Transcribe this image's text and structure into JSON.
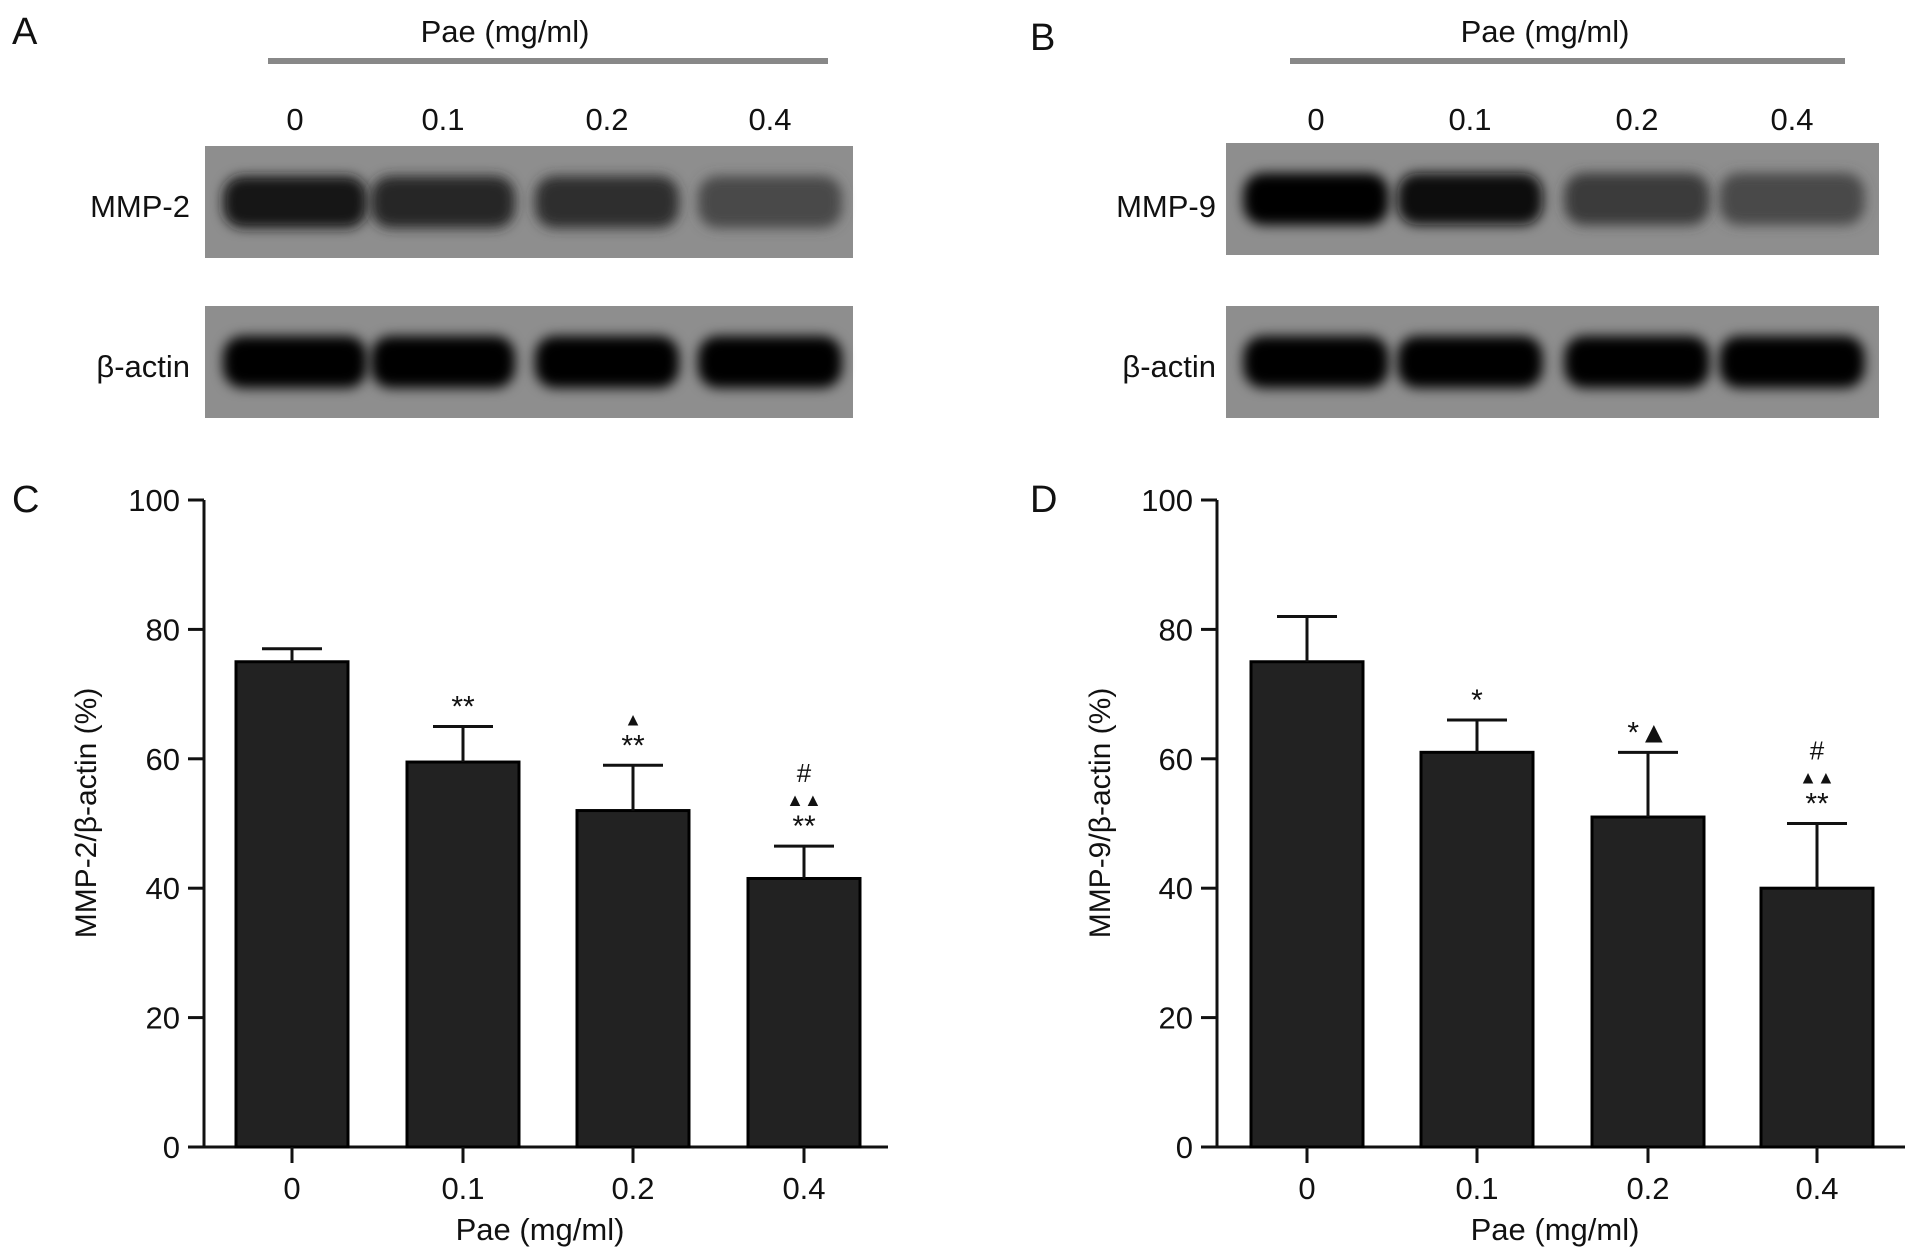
{
  "panels": {
    "A": {
      "letter": "A",
      "header": "Pae (mg/ml)",
      "lanes": [
        "0",
        "0.1",
        "0.2",
        "0.4"
      ],
      "rows": [
        {
          "label": "MMP-2",
          "intensity": [
            0.85,
            0.75,
            0.7,
            0.5
          ]
        },
        {
          "label": "β-actin",
          "intensity": [
            1.0,
            1.0,
            1.0,
            1.0
          ]
        }
      ]
    },
    "B": {
      "letter": "B",
      "header": "Pae (mg/ml)",
      "lanes": [
        "0",
        "0.1",
        "0.2",
        "0.4"
      ],
      "rows": [
        {
          "label": "MMP-9",
          "intensity": [
            1.0,
            0.95,
            0.6,
            0.5
          ]
        },
        {
          "label": "β-actin",
          "intensity": [
            1.0,
            1.0,
            1.0,
            1.0
          ]
        }
      ]
    }
  },
  "chart_data": [
    {
      "letter": "C",
      "type": "bar",
      "categories": [
        "0",
        "0.1",
        "0.2",
        "0.4"
      ],
      "values": [
        75,
        59.5,
        52,
        41.5
      ],
      "errors": [
        2,
        5.5,
        7,
        5
      ],
      "annotations": [
        [],
        [
          "**"
        ],
        [
          "▲",
          "**"
        ],
        [
          "#",
          "▲▲",
          "**"
        ]
      ],
      "xlabel": "Pae (mg/ml)",
      "ylabel": "MMP-2/β-actin (%)",
      "ylim": [
        0,
        100
      ],
      "yticks": [
        "0",
        "20",
        "40",
        "60",
        "80",
        "100"
      ]
    },
    {
      "letter": "D",
      "type": "bar",
      "categories": [
        "0",
        "0.1",
        "0.2",
        "0.4"
      ],
      "values": [
        75,
        61,
        51,
        40
      ],
      "errors": [
        7,
        5,
        10,
        10
      ],
      "annotations": [
        [],
        [
          "*"
        ],
        [
          "*▲"
        ],
        [
          "#",
          "▲▲",
          "**"
        ]
      ],
      "xlabel": "Pae (mg/ml)",
      "ylabel": "MMP-9/β-actin (%)",
      "ylim": [
        0,
        100
      ],
      "yticks": [
        "0",
        "20",
        "40",
        "60",
        "80",
        "100"
      ]
    }
  ]
}
